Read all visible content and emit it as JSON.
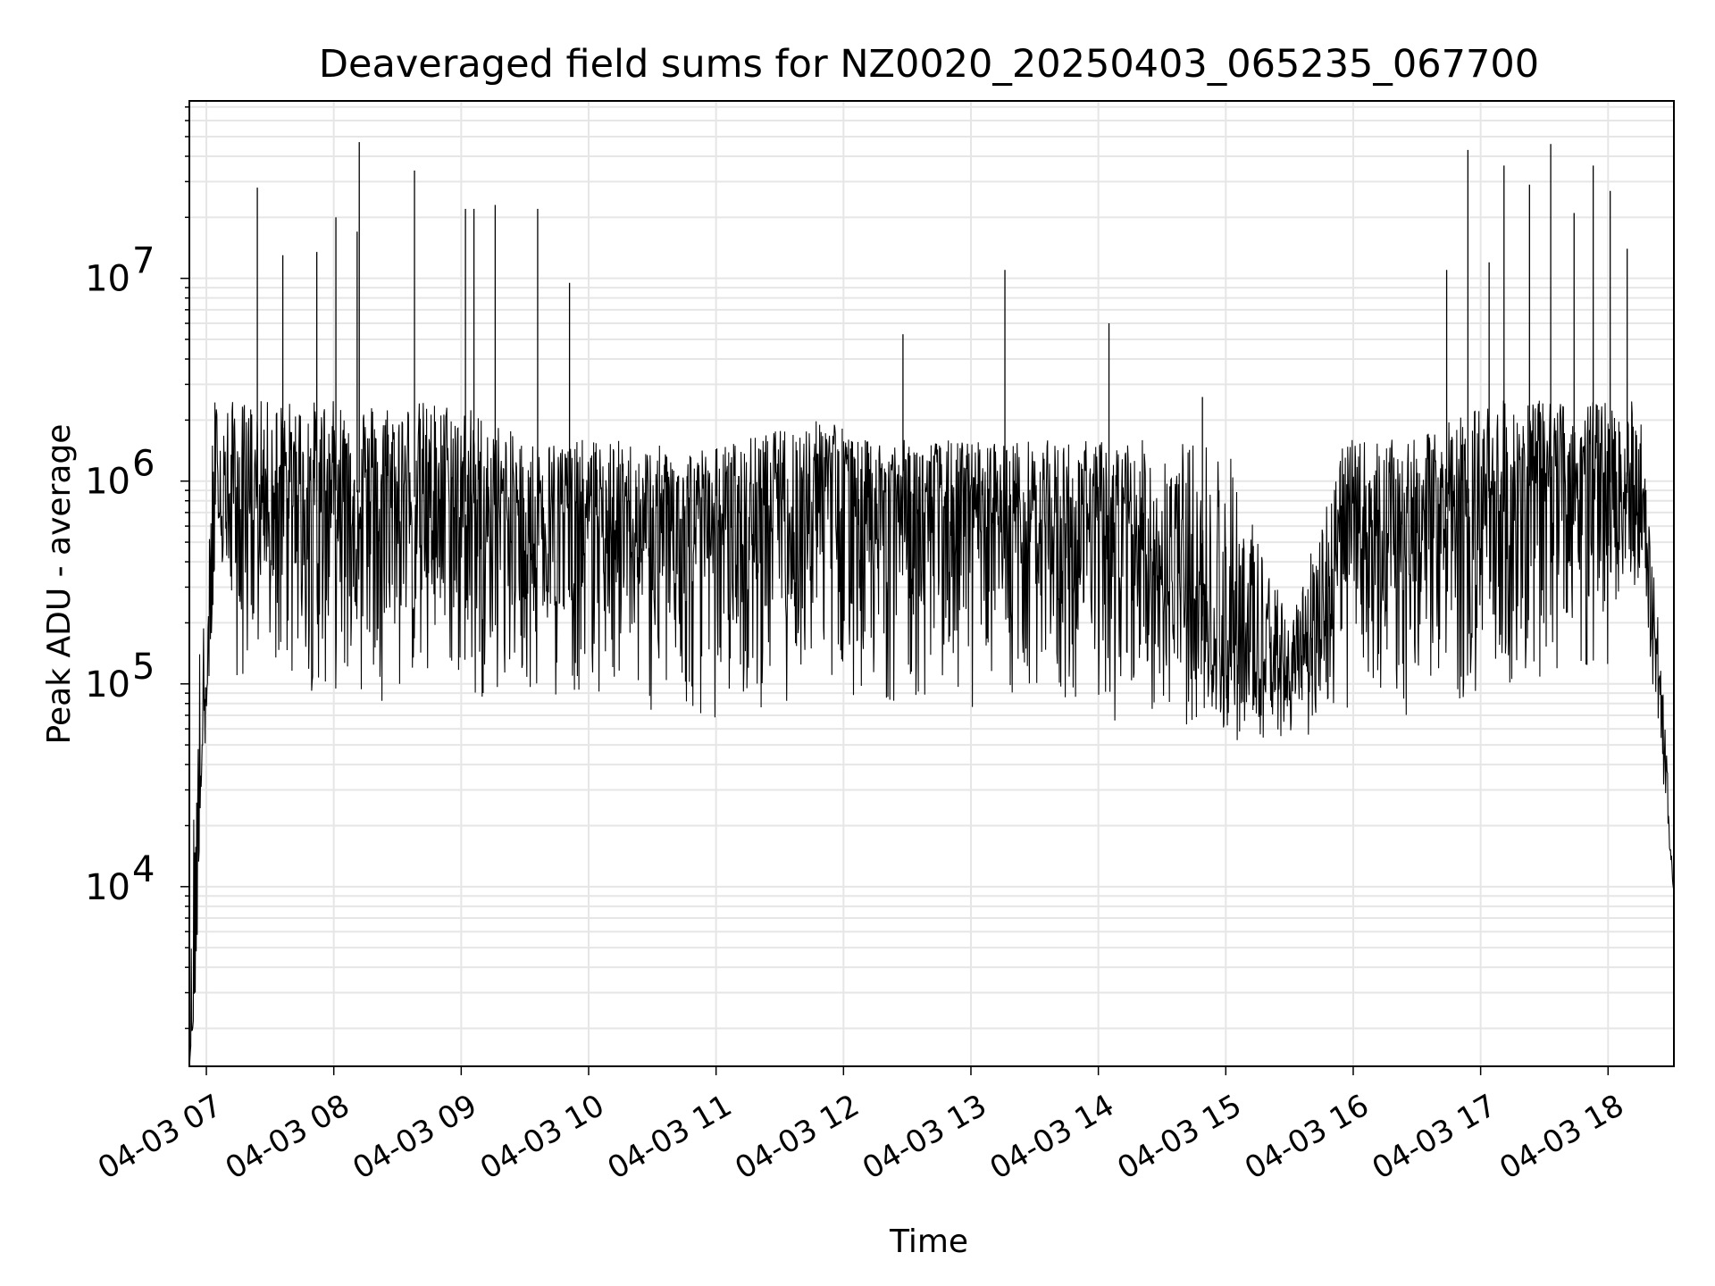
{
  "chart_data": {
    "type": "line",
    "title": "Deaveraged field sums for NZ0020_20250403_065235_067700",
    "xlabel": "Time",
    "ylabel": "Peak ADU - average",
    "yscale": "log",
    "ylim": [
      1300,
      75000000
    ],
    "xlim": [
      "2025-04-03 06:52",
      "2025-04-03 18:31"
    ],
    "x_tick_labels": [
      "04-03 07",
      "04-03 08",
      "04-03 09",
      "04-03 10",
      "04-03 11",
      "04-03 12",
      "04-03 13",
      "04-03 14",
      "04-03 15",
      "04-03 16",
      "04-03 17",
      "04-03 18"
    ],
    "y_tick_labels": [
      {
        "value": 10000,
        "base": "10",
        "exp": "4"
      },
      {
        "value": 100000,
        "base": "10",
        "exp": "5"
      },
      {
        "value": 1000000,
        "base": "10",
        "exp": "6"
      },
      {
        "value": 10000000,
        "base": "10",
        "exp": "7"
      }
    ],
    "grid": true,
    "line_color": "#000000",
    "grid_color": "#e6e6e6",
    "series": [
      {
        "x": [
          "2025-04-03 06:52",
          "2025-04-03 06:55",
          "2025-04-03 06:57",
          "2025-04-03 06:58",
          "2025-04-03 07:00",
          "2025-04-03 07:03",
          "2025-04-03 07:05",
          "2025-04-03 07:08",
          "2025-04-03 07:10",
          "2025-04-03 07:12",
          "2025-04-03 07:15",
          "2025-04-03 07:20",
          "2025-04-03 07:30",
          "2025-04-03 08:00",
          "2025-04-03 09:00",
          "2025-04-03 09:30",
          "2025-04-03 10:00",
          "2025-04-03 10:15",
          "2025-04-03 10:30",
          "2025-04-03 11:00",
          "2025-04-03 11:55",
          "2025-04-03 12:05",
          "2025-04-03 13:00",
          "2025-04-03 14:00",
          "2025-04-03 14:30",
          "2025-04-03 15:00",
          "2025-04-03 15:30",
          "2025-04-03 15:55",
          "2025-04-03 16:30",
          "2025-04-03 17:00",
          "2025-04-03 17:30",
          "2025-04-03 18:00",
          "2025-04-03 18:15",
          "2025-04-03 18:20",
          "2025-04-03 18:25",
          "2025-04-03 18:31"
        ],
        "lower": [
          1300,
          2500,
          18000,
          40000,
          55000,
          150000,
          400000,
          300000,
          250000,
          100000,
          80000,
          90000,
          90000,
          80000,
          80000,
          80000,
          80000,
          95000,
          60000,
          60000,
          90000,
          80000,
          70000,
          65000,
          60000,
          50000,
          50000,
          60000,
          65000,
          65000,
          70000,
          80000,
          300000,
          120000,
          40000,
          9000
        ],
        "typical": [
          1300,
          4000,
          30000,
          60000,
          90000,
          300000,
          700000,
          700000,
          700000,
          800000,
          800000,
          800000,
          900000,
          900000,
          800000,
          700000,
          700000,
          600000,
          600000,
          600000,
          1100000,
          900000,
          700000,
          600000,
          400000,
          150000,
          100000,
          500000,
          700000,
          800000,
          1000000,
          1000000,
          800000,
          300000,
          80000,
          9000
        ],
        "upper": [
          1300,
          170000,
          180000,
          260000,
          120000,
          2700000,
          2800000,
          2500000,
          2500000,
          2500000,
          2500000,
          2500000,
          2500000,
          2500000,
          2500000,
          1600000,
          1600000,
          1600000,
          1500000,
          1500000,
          2100000,
          1600000,
          1600000,
          1600000,
          1600000,
          1600000,
          200000,
          1600000,
          1600000,
          2500000,
          2500000,
          2500000,
          2500000,
          500000,
          150000,
          9000
        ]
      }
    ],
    "spikes": [
      {
        "x": "2025-04-03 07:24",
        "y": 28000000
      },
      {
        "x": "2025-04-03 07:36",
        "y": 13000000
      },
      {
        "x": "2025-04-03 07:52",
        "y": 13500000
      },
      {
        "x": "2025-04-03 08:01",
        "y": 20000000
      },
      {
        "x": "2025-04-03 08:11",
        "y": 17000000
      },
      {
        "x": "2025-04-03 08:12",
        "y": 47000000
      },
      {
        "x": "2025-04-03 08:38",
        "y": 34000000
      },
      {
        "x": "2025-04-03 09:02",
        "y": 22000000
      },
      {
        "x": "2025-04-03 09:06",
        "y": 22000000
      },
      {
        "x": "2025-04-03 09:16",
        "y": 23000000
      },
      {
        "x": "2025-04-03 09:36",
        "y": 22000000
      },
      {
        "x": "2025-04-03 09:51",
        "y": 9500000
      },
      {
        "x": "2025-04-03 12:28",
        "y": 5300000
      },
      {
        "x": "2025-04-03 13:16",
        "y": 11000000
      },
      {
        "x": "2025-04-03 14:05",
        "y": 6000000
      },
      {
        "x": "2025-04-03 14:49",
        "y": 2600000
      },
      {
        "x": "2025-04-03 16:44",
        "y": 11000000
      },
      {
        "x": "2025-04-03 16:54",
        "y": 43000000
      },
      {
        "x": "2025-04-03 17:04",
        "y": 12000000
      },
      {
        "x": "2025-04-03 17:11",
        "y": 36000000
      },
      {
        "x": "2025-04-03 17:23",
        "y": 29000000
      },
      {
        "x": "2025-04-03 17:33",
        "y": 46000000
      },
      {
        "x": "2025-04-03 17:44",
        "y": 21000000
      },
      {
        "x": "2025-04-03 17:53",
        "y": 36000000
      },
      {
        "x": "2025-04-03 18:01",
        "y": 27000000
      },
      {
        "x": "2025-04-03 18:09",
        "y": 14000000
      }
    ]
  }
}
